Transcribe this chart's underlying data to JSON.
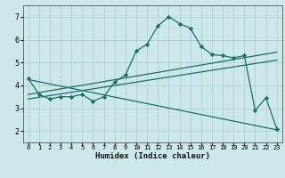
{
  "title": "",
  "xlabel": "Humidex (Indice chaleur)",
  "ylabel": "",
  "background_color": "#cce8ea",
  "grid_color": "#b0d0d4",
  "line_color": "#1a6e6a",
  "xlim": [
    -0.5,
    23.5
  ],
  "ylim": [
    1.5,
    7.5
  ],
  "xticks": [
    0,
    1,
    2,
    3,
    4,
    5,
    6,
    7,
    8,
    9,
    10,
    11,
    12,
    13,
    14,
    15,
    16,
    17,
    18,
    19,
    20,
    21,
    22,
    23
  ],
  "yticks": [
    2,
    3,
    4,
    5,
    6,
    7
  ],
  "series": [
    {
      "x": [
        0,
        1,
        2,
        3,
        4,
        5,
        6,
        7,
        8,
        9,
        10,
        11,
        12,
        13,
        14,
        15,
        16,
        17,
        18,
        19,
        20,
        21,
        22,
        23
      ],
      "y": [
        4.3,
        3.6,
        3.4,
        3.5,
        3.5,
        3.6,
        3.3,
        3.5,
        4.15,
        4.45,
        5.5,
        5.8,
        6.6,
        7.0,
        6.7,
        6.5,
        5.7,
        5.35,
        5.3,
        5.2,
        5.3,
        2.9,
        3.45,
        2.1
      ],
      "has_markers": true
    },
    {
      "x": [
        0,
        23
      ],
      "y": [
        3.6,
        5.45
      ],
      "has_markers": false
    },
    {
      "x": [
        0,
        23
      ],
      "y": [
        3.4,
        5.1
      ],
      "has_markers": false
    },
    {
      "x": [
        0,
        23
      ],
      "y": [
        4.25,
        2.05
      ],
      "has_markers": false
    }
  ]
}
